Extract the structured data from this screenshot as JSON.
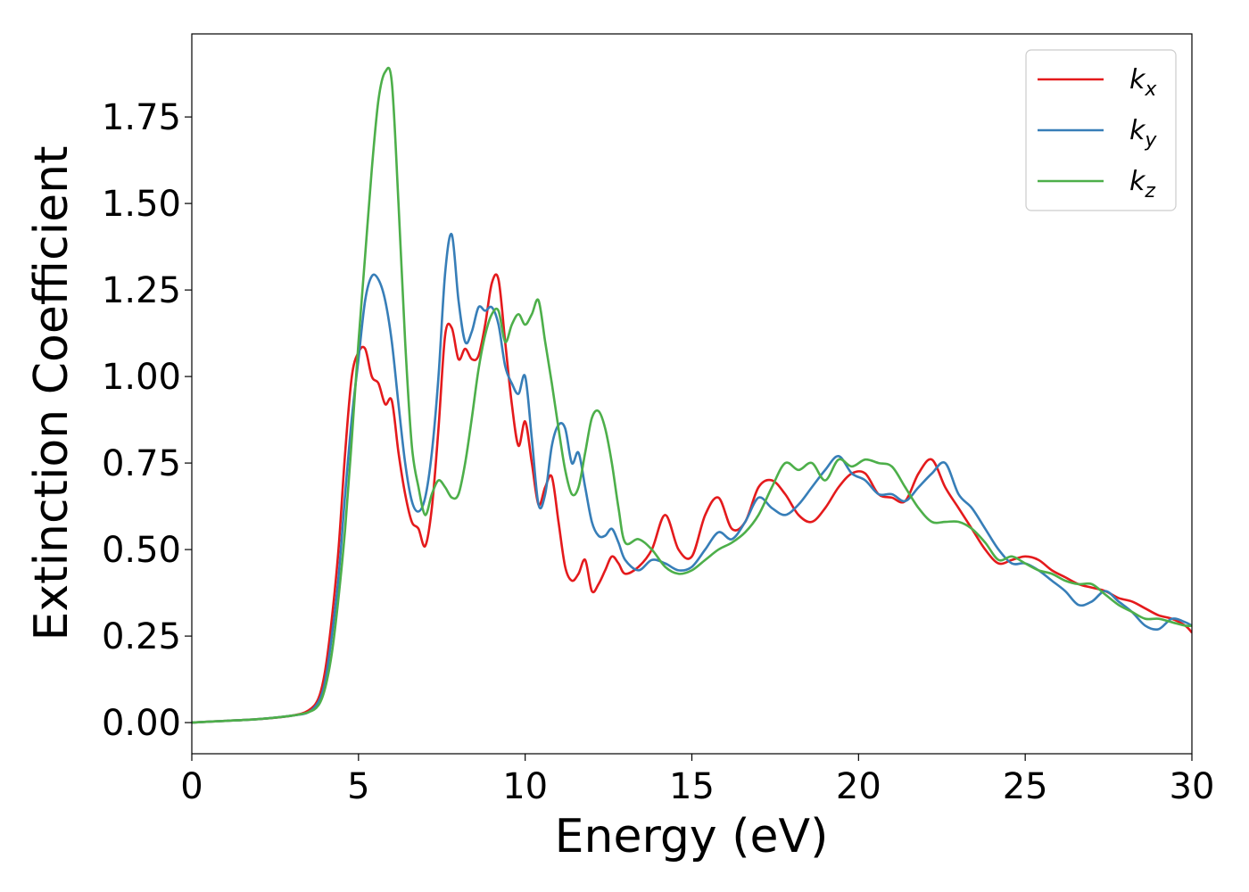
{
  "chart_data": {
    "type": "line",
    "xlabel": "Energy (eV)",
    "ylabel": "Extinction Coefficient",
    "xlim": [
      0,
      30
    ],
    "ylim": [
      -0.09,
      1.99
    ],
    "grid": false,
    "legend_position": "top-right",
    "x_ticks": [
      "0",
      "5",
      "10",
      "15",
      "20",
      "25",
      "30"
    ],
    "y_ticks": [
      "0.00",
      "0.25",
      "0.50",
      "0.75",
      "1.00",
      "1.25",
      "1.50",
      "1.75"
    ],
    "series": [
      {
        "name": "k_x",
        "label_main": "k",
        "label_sub": "x",
        "color": "#e41a1c",
        "x": [
          0,
          1,
          2,
          3,
          3.5,
          3.8,
          4.0,
          4.2,
          4.4,
          4.6,
          4.8,
          5.0,
          5.2,
          5.4,
          5.6,
          5.8,
          6.0,
          6.2,
          6.4,
          6.6,
          6.8,
          7.0,
          7.2,
          7.4,
          7.6,
          7.8,
          8.0,
          8.2,
          8.4,
          8.6,
          8.8,
          9.0,
          9.2,
          9.4,
          9.6,
          9.8,
          10.0,
          10.2,
          10.4,
          10.6,
          10.8,
          11.0,
          11.2,
          11.4,
          11.6,
          11.8,
          12.0,
          12.2,
          12.4,
          12.6,
          12.8,
          13.0,
          13.4,
          13.8,
          14.2,
          14.6,
          15.0,
          15.4,
          15.8,
          16.2,
          16.6,
          17.0,
          17.4,
          17.8,
          18.2,
          18.6,
          19.0,
          19.4,
          19.8,
          20.2,
          20.6,
          21.0,
          21.4,
          21.8,
          22.2,
          22.6,
          23.0,
          23.4,
          23.8,
          24.2,
          24.6,
          25.0,
          25.4,
          25.8,
          26.2,
          26.6,
          27.0,
          27.4,
          27.8,
          28.2,
          28.6,
          29.0,
          29.4,
          29.8,
          30.0
        ],
        "values": [
          0.0,
          0.005,
          0.01,
          0.02,
          0.035,
          0.07,
          0.15,
          0.3,
          0.5,
          0.78,
          1.0,
          1.07,
          1.08,
          1.0,
          0.98,
          0.92,
          0.93,
          0.78,
          0.66,
          0.58,
          0.56,
          0.51,
          0.62,
          0.85,
          1.12,
          1.14,
          1.05,
          1.08,
          1.05,
          1.06,
          1.15,
          1.27,
          1.28,
          1.1,
          0.92,
          0.8,
          0.87,
          0.75,
          0.63,
          0.68,
          0.71,
          0.58,
          0.45,
          0.41,
          0.43,
          0.47,
          0.38,
          0.4,
          0.44,
          0.48,
          0.46,
          0.43,
          0.45,
          0.5,
          0.6,
          0.5,
          0.48,
          0.6,
          0.65,
          0.56,
          0.58,
          0.68,
          0.7,
          0.66,
          0.6,
          0.58,
          0.62,
          0.68,
          0.72,
          0.72,
          0.66,
          0.65,
          0.64,
          0.72,
          0.76,
          0.68,
          0.62,
          0.56,
          0.5,
          0.46,
          0.47,
          0.48,
          0.47,
          0.44,
          0.42,
          0.4,
          0.39,
          0.38,
          0.36,
          0.35,
          0.33,
          0.31,
          0.3,
          0.28,
          0.26
        ]
      },
      {
        "name": "k_y",
        "label_main": "k",
        "label_sub": "y",
        "color": "#377eb8",
        "x": [
          0,
          1,
          2,
          3,
          3.5,
          3.8,
          4.0,
          4.2,
          4.4,
          4.6,
          4.8,
          5.0,
          5.2,
          5.4,
          5.6,
          5.8,
          6.0,
          6.2,
          6.4,
          6.6,
          6.8,
          7.0,
          7.2,
          7.4,
          7.6,
          7.8,
          8.0,
          8.2,
          8.4,
          8.6,
          8.8,
          9.0,
          9.2,
          9.4,
          9.6,
          9.8,
          10.0,
          10.2,
          10.4,
          10.6,
          10.8,
          11.0,
          11.2,
          11.4,
          11.6,
          11.8,
          12.0,
          12.2,
          12.4,
          12.6,
          12.8,
          13.0,
          13.4,
          13.8,
          14.2,
          14.6,
          15.0,
          15.4,
          15.8,
          16.2,
          16.6,
          17.0,
          17.4,
          17.8,
          18.2,
          18.6,
          19.0,
          19.4,
          19.8,
          20.2,
          20.6,
          21.0,
          21.4,
          21.8,
          22.2,
          22.6,
          23.0,
          23.4,
          23.8,
          24.2,
          24.6,
          25.0,
          25.4,
          25.8,
          26.2,
          26.6,
          27.0,
          27.4,
          27.8,
          28.2,
          28.6,
          29.0,
          29.4,
          29.8,
          30.0
        ],
        "values": [
          0.0,
          0.005,
          0.01,
          0.02,
          0.03,
          0.06,
          0.12,
          0.25,
          0.42,
          0.66,
          0.88,
          1.05,
          1.22,
          1.29,
          1.28,
          1.22,
          1.1,
          0.92,
          0.75,
          0.64,
          0.61,
          0.65,
          0.78,
          1.0,
          1.3,
          1.41,
          1.22,
          1.1,
          1.13,
          1.2,
          1.19,
          1.2,
          1.15,
          1.03,
          0.98,
          0.95,
          1.0,
          0.82,
          0.63,
          0.66,
          0.8,
          0.86,
          0.85,
          0.75,
          0.78,
          0.68,
          0.58,
          0.54,
          0.54,
          0.56,
          0.52,
          0.47,
          0.44,
          0.47,
          0.46,
          0.44,
          0.45,
          0.5,
          0.55,
          0.53,
          0.58,
          0.65,
          0.62,
          0.6,
          0.63,
          0.68,
          0.73,
          0.77,
          0.72,
          0.7,
          0.66,
          0.66,
          0.64,
          0.68,
          0.72,
          0.75,
          0.66,
          0.62,
          0.56,
          0.5,
          0.46,
          0.46,
          0.44,
          0.41,
          0.38,
          0.34,
          0.35,
          0.38,
          0.35,
          0.32,
          0.28,
          0.27,
          0.3,
          0.29,
          0.28
        ]
      },
      {
        "name": "k_z",
        "label_main": "k",
        "label_sub": "z",
        "color": "#4daf4a",
        "x": [
          0,
          1,
          2,
          3,
          3.5,
          3.8,
          4.0,
          4.2,
          4.4,
          4.6,
          4.8,
          5.0,
          5.2,
          5.4,
          5.6,
          5.8,
          6.0,
          6.2,
          6.4,
          6.6,
          6.8,
          7.0,
          7.2,
          7.4,
          7.6,
          7.8,
          8.0,
          8.2,
          8.4,
          8.6,
          8.8,
          9.0,
          9.2,
          9.4,
          9.6,
          9.8,
          10.0,
          10.2,
          10.4,
          10.6,
          10.8,
          11.0,
          11.2,
          11.4,
          11.6,
          11.8,
          12.0,
          12.2,
          12.4,
          12.6,
          12.8,
          13.0,
          13.4,
          13.8,
          14.2,
          14.6,
          15.0,
          15.4,
          15.8,
          16.2,
          16.6,
          17.0,
          17.4,
          17.8,
          18.2,
          18.6,
          19.0,
          19.4,
          19.8,
          20.2,
          20.6,
          21.0,
          21.4,
          21.8,
          22.2,
          22.6,
          23.0,
          23.4,
          23.8,
          24.2,
          24.6,
          25.0,
          25.4,
          25.8,
          26.2,
          26.6,
          27.0,
          27.4,
          27.8,
          28.2,
          28.6,
          29.0,
          29.4,
          29.8,
          30.0
        ],
        "values": [
          0.0,
          0.005,
          0.01,
          0.02,
          0.03,
          0.05,
          0.1,
          0.2,
          0.36,
          0.56,
          0.82,
          1.1,
          1.35,
          1.6,
          1.8,
          1.88,
          1.85,
          1.5,
          1.1,
          0.8,
          0.68,
          0.6,
          0.66,
          0.7,
          0.68,
          0.65,
          0.66,
          0.75,
          0.88,
          1.02,
          1.12,
          1.18,
          1.19,
          1.1,
          1.15,
          1.18,
          1.15,
          1.18,
          1.22,
          1.1,
          0.98,
          0.85,
          0.73,
          0.66,
          0.68,
          0.78,
          0.88,
          0.9,
          0.85,
          0.75,
          0.62,
          0.52,
          0.53,
          0.5,
          0.45,
          0.43,
          0.44,
          0.47,
          0.5,
          0.52,
          0.55,
          0.6,
          0.68,
          0.75,
          0.73,
          0.75,
          0.7,
          0.76,
          0.74,
          0.76,
          0.75,
          0.74,
          0.68,
          0.62,
          0.58,
          0.58,
          0.58,
          0.56,
          0.52,
          0.47,
          0.48,
          0.46,
          0.44,
          0.43,
          0.41,
          0.4,
          0.4,
          0.37,
          0.34,
          0.32,
          0.3,
          0.3,
          0.29,
          0.28,
          0.28
        ]
      }
    ]
  }
}
